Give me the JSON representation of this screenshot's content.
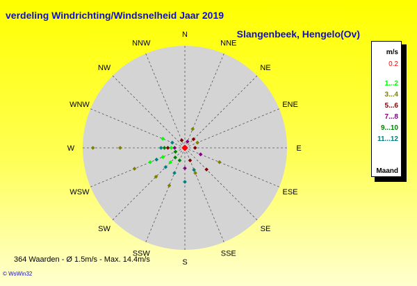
{
  "title": "verdeling Windrichting/Windsnelheid  Jaar 2019",
  "subtitle": "Slangenbeek, Hengelo(Ov)",
  "footer": "364 Waarden    -   Ø 1.5m/s   -  Max. 14.4m/s",
  "brand": "© WsWin32",
  "colors": {
    "background_top": "#ffff00",
    "background_bottom": "#ffffd0",
    "rose_fill": "#d4d4d4",
    "text_blue": "#1010c0"
  },
  "legend": {
    "unit": "m/s",
    "items": [
      {
        "label": "0.2",
        "color": "#ff0000"
      },
      {
        "label": "1...2",
        "color": "#00ff00"
      },
      {
        "label": "3...4",
        "color": "#808000"
      },
      {
        "label": "5...6",
        "color": "#800000"
      },
      {
        "label": "7...8",
        "color": "#800080"
      },
      {
        "label": "9...10",
        "color": "#008000"
      },
      {
        "label": "11...12",
        "color": "#008080"
      }
    ],
    "footer": "Maand"
  },
  "chart_data": {
    "type": "scatter",
    "subtype": "wind-rose",
    "directions": [
      "N",
      "NNE",
      "NE",
      "ENE",
      "E",
      "ESE",
      "SE",
      "SSE",
      "S",
      "SSW",
      "SW",
      "WSW",
      "W",
      "WNW",
      "NW",
      "NNW"
    ],
    "ring_max_ms": 15,
    "series": [
      {
        "name": "0.2",
        "color": "#ff0000",
        "points": [
          {
            "dir": "W",
            "speed": 0.2
          },
          {
            "dir": "N",
            "speed": 0.2
          },
          {
            "dir": "S",
            "speed": 0.2
          },
          {
            "dir": "E",
            "speed": 0.2
          }
        ]
      },
      {
        "name": "1...2",
        "color": "#00ff00",
        "points": [
          {
            "dir": "WSW",
            "speed": 3.5
          },
          {
            "dir": "WSW",
            "speed": 5.5
          },
          {
            "dir": "WNW",
            "speed": 3.5
          },
          {
            "dir": "SW",
            "speed": 3.0
          },
          {
            "dir": "W",
            "speed": 2.0
          }
        ]
      },
      {
        "name": "3...4",
        "color": "#808000",
        "points": [
          {
            "dir": "W",
            "speed": 13.5
          },
          {
            "dir": "W",
            "speed": 9.5
          },
          {
            "dir": "WSW",
            "speed": 8.0
          },
          {
            "dir": "SW",
            "speed": 6.0
          },
          {
            "dir": "SSW",
            "speed": 6.0
          },
          {
            "dir": "NNE",
            "speed": 3.0
          },
          {
            "dir": "ESE",
            "speed": 5.5
          },
          {
            "dir": "SSE",
            "speed": 4.0
          },
          {
            "dir": "ENE",
            "speed": 2.0
          }
        ]
      },
      {
        "name": "5...6",
        "color": "#800000",
        "points": [
          {
            "dir": "SE",
            "speed": 4.5
          },
          {
            "dir": "E",
            "speed": 1.5
          },
          {
            "dir": "NNW",
            "speed": 1.2
          },
          {
            "dir": "NE",
            "speed": 1.8
          },
          {
            "dir": "W",
            "speed": 2.5
          },
          {
            "dir": "SSE",
            "speed": 2.0
          }
        ]
      },
      {
        "name": "7...8",
        "color": "#800080",
        "points": [
          {
            "dir": "S",
            "speed": 3.0
          },
          {
            "dir": "ESE",
            "speed": 2.5
          },
          {
            "dir": "W",
            "speed": 1.5
          },
          {
            "dir": "NNE",
            "speed": 1.0
          }
        ]
      },
      {
        "name": "9...10",
        "color": "#008000",
        "points": [
          {
            "dir": "SW",
            "speed": 2.0
          },
          {
            "dir": "WSW",
            "speed": 1.5
          },
          {
            "dir": "W",
            "speed": 3.0
          },
          {
            "dir": "SSW",
            "speed": 2.0
          }
        ]
      },
      {
        "name": "11...12",
        "color": "#008080",
        "points": [
          {
            "dir": "W",
            "speed": 3.5
          },
          {
            "dir": "WSW",
            "speed": 4.5
          },
          {
            "dir": "SSW",
            "speed": 4.0
          },
          {
            "dir": "S",
            "speed": 5.0
          },
          {
            "dir": "SW",
            "speed": 4.0
          },
          {
            "dir": "SSE",
            "speed": 3.5
          },
          {
            "dir": "WNW",
            "speed": 2.0
          }
        ]
      }
    ]
  }
}
